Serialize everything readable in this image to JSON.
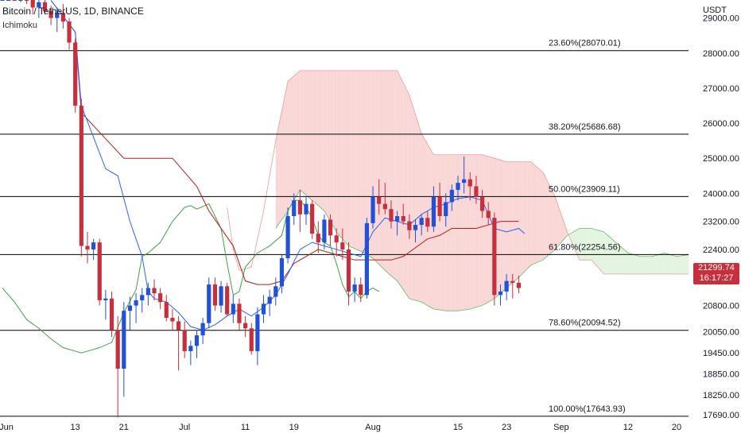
{
  "header": {
    "title": "Bitcoin / TetherUS, 1D, BINANCE",
    "indicator": "Ichimoku"
  },
  "price_badge": {
    "price": "21299.74",
    "countdown": "16:17:27"
  },
  "colors": {
    "up": "#2151d6",
    "down": "#c62f3b",
    "cloud_bear": "#f9d7d7",
    "cloud_bull": "#e3f4e0",
    "tenkan": "#2962ff",
    "kijun": "#b71c1c",
    "chikou": "#43a047",
    "span_a": "#66bb6a",
    "span_b": "#ef9a9a",
    "fib_line": "#000000"
  },
  "chart_data": {
    "type": "candlestick",
    "currency": "USDT",
    "ylim": [
      17550,
      29400
    ],
    "y_ticks": [
      29000,
      28000,
      27000,
      26000,
      25000,
      24000,
      23200,
      22400,
      21600,
      20800,
      20050,
      19450,
      18850,
      18250,
      17690
    ],
    "y_tick_labels": [
      "29000.00",
      "28000.00",
      "27000.00",
      "26000.00",
      "25000.00",
      "24000.00",
      "23200.00",
      "22400.00",
      "21600.00",
      "20800.00",
      "20050.00",
      "19450.00",
      "18850.00",
      "18250.00",
      "17690.00"
    ],
    "x_ticks": [
      {
        "label": "Jun",
        "i": 0
      },
      {
        "label": "13",
        "i": 12
      },
      {
        "label": "21",
        "i": 20
      },
      {
        "label": "Jul",
        "i": 30
      },
      {
        "label": "11",
        "i": 40
      },
      {
        "label": "19",
        "i": 48
      },
      {
        "label": "Aug",
        "i": 61
      },
      {
        "label": "15",
        "i": 75
      },
      {
        "label": "23",
        "i": 83
      },
      {
        "label": "Sep",
        "i": 92
      },
      {
        "label": "12",
        "i": 103
      },
      {
        "label": "20",
        "i": 111
      }
    ],
    "fib_levels": [
      {
        "label": "23.60%(28070.01)",
        "value": 28070.01
      },
      {
        "label": "38.20%(25686.68)",
        "value": 25686.68
      },
      {
        "label": "50.00%(23909.11)",
        "value": 23909.11
      },
      {
        "label": "61.80%(22254.56)",
        "value": 22254.56
      },
      {
        "label": "78.60%(20094.52)",
        "value": 20094.52
      },
      {
        "label": "100.00%(17643.93)",
        "value": 17643.93
      }
    ],
    "candles": [
      [
        29700,
        29900,
        29500,
        29780
      ],
      [
        29780,
        30050,
        29600,
        29880
      ],
      [
        29880,
        30100,
        29600,
        29700
      ],
      [
        29700,
        29950,
        29450,
        29850
      ],
      [
        29850,
        30000,
        29400,
        29550
      ],
      [
        29550,
        29750,
        29100,
        29300
      ],
      [
        29300,
        29600,
        29000,
        29450
      ],
      [
        29450,
        29700,
        29100,
        29200
      ],
      [
        29200,
        29350,
        28800,
        29000
      ],
      [
        29000,
        29300,
        28600,
        29150
      ],
      [
        29150,
        29400,
        28700,
        28900
      ],
      [
        28900,
        29000,
        28100,
        28300
      ],
      [
        28300,
        28400,
        26300,
        26500
      ],
      [
        26500,
        26700,
        22200,
        22500
      ],
      [
        22500,
        22900,
        22000,
        22400
      ],
      [
        22400,
        22700,
        22100,
        22600
      ],
      [
        22600,
        22700,
        20800,
        20950
      ],
      [
        20950,
        21250,
        20400,
        21000
      ],
      [
        21000,
        21200,
        19900,
        20100
      ],
      [
        20100,
        20500,
        17610,
        19000
      ],
      [
        19000,
        20900,
        18200,
        20650
      ],
      [
        20650,
        21050,
        20100,
        20800
      ],
      [
        20800,
        21150,
        20300,
        20950
      ],
      [
        20950,
        21300,
        20600,
        21100
      ],
      [
        21100,
        21450,
        20800,
        21300
      ],
      [
        21300,
        21550,
        20950,
        21150
      ],
      [
        21150,
        21300,
        20700,
        20900
      ],
      [
        20900,
        21100,
        20350,
        20450
      ],
      [
        20450,
        20700,
        20100,
        20350
      ],
      [
        20350,
        20500,
        18950,
        20100
      ],
      [
        20100,
        20350,
        19300,
        19500
      ],
      [
        19500,
        19800,
        19100,
        19650
      ],
      [
        19650,
        20100,
        19300,
        19950
      ],
      [
        19950,
        20450,
        19700,
        20300
      ],
      [
        20300,
        21600,
        20150,
        21400
      ],
      [
        21400,
        21600,
        20650,
        20800
      ],
      [
        20800,
        21500,
        20600,
        21350
      ],
      [
        21350,
        21450,
        20500,
        20550
      ],
      [
        20550,
        21100,
        20300,
        20850
      ],
      [
        20850,
        21000,
        20100,
        20300
      ],
      [
        20300,
        20500,
        19900,
        20150
      ],
      [
        20150,
        20300,
        19400,
        19500
      ],
      [
        19500,
        20750,
        19100,
        20550
      ],
      [
        20550,
        21100,
        20300,
        20850
      ],
      [
        20850,
        21250,
        20500,
        21050
      ],
      [
        21050,
        21600,
        20800,
        21350
      ],
      [
        21350,
        22250,
        21150,
        22150
      ],
      [
        22150,
        23600,
        22000,
        23350
      ],
      [
        23350,
        24000,
        23100,
        23800
      ],
      [
        23800,
        24100,
        22900,
        23400
      ],
      [
        23400,
        23900,
        23100,
        23700
      ],
      [
        23700,
        23800,
        22700,
        22850
      ],
      [
        22850,
        23200,
        22300,
        22600
      ],
      [
        22600,
        23400,
        22400,
        23250
      ],
      [
        23250,
        23400,
        22500,
        22800
      ],
      [
        22800,
        23000,
        22200,
        22600
      ],
      [
        22600,
        23000,
        22100,
        22400
      ],
      [
        22400,
        22600,
        20800,
        21200
      ],
      [
        21200,
        21600,
        20900,
        21400
      ],
      [
        21400,
        21600,
        20900,
        21100
      ],
      [
        21100,
        23300,
        21000,
        23150
      ],
      [
        23150,
        24200,
        23000,
        23900
      ],
      [
        23900,
        24400,
        23400,
        23700
      ],
      [
        23700,
        24300,
        23400,
        23550
      ],
      [
        23550,
        23800,
        23000,
        23200
      ],
      [
        23200,
        23500,
        22800,
        23350
      ],
      [
        23350,
        23700,
        23100,
        23200
      ],
      [
        23200,
        23400,
        22700,
        22950
      ],
      [
        22950,
        23250,
        22600,
        23100
      ],
      [
        23100,
        23400,
        22800,
        23300
      ],
      [
        23300,
        23500,
        22900,
        23050
      ],
      [
        23050,
        24200,
        22900,
        23900
      ],
      [
        23900,
        24300,
        23200,
        23350
      ],
      [
        23350,
        24000,
        23050,
        23750
      ],
      [
        23750,
        24250,
        23500,
        24100
      ],
      [
        24100,
        24500,
        23800,
        24300
      ],
      [
        24300,
        25050,
        24000,
        24400
      ],
      [
        24400,
        24600,
        23800,
        24200
      ],
      [
        24200,
        24500,
        23700,
        23900
      ],
      [
        23900,
        24100,
        23300,
        23500
      ],
      [
        23500,
        23750,
        23100,
        23300
      ],
      [
        23300,
        23450,
        20800,
        21100
      ],
      [
        21100,
        21400,
        20800,
        21200
      ],
      [
        21200,
        21700,
        20950,
        21500
      ],
      [
        21500,
        21700,
        21000,
        21450
      ],
      [
        21450,
        21650,
        21150,
        21300
      ]
    ],
    "ichimoku": {
      "tenkan": [
        [
          8,
          29500
        ],
        [
          12,
          28600
        ],
        [
          13,
          26500
        ],
        [
          15,
          25600
        ],
        [
          17,
          24700
        ],
        [
          19,
          24500
        ],
        [
          21,
          23200
        ],
        [
          23,
          22200
        ],
        [
          24,
          21200
        ],
        [
          25,
          21000
        ],
        [
          27,
          20900
        ],
        [
          29,
          20600
        ],
        [
          31,
          20200
        ],
        [
          33,
          20100
        ],
        [
          35,
          20250
        ],
        [
          37,
          20500
        ],
        [
          39,
          20700
        ],
        [
          41,
          20500
        ],
        [
          43,
          20750
        ],
        [
          45,
          21100
        ],
        [
          47,
          21700
        ],
        [
          49,
          22400
        ],
        [
          51,
          22600
        ],
        [
          53,
          22500
        ],
        [
          55,
          22400
        ],
        [
          57,
          22300
        ],
        [
          59,
          22200
        ],
        [
          61,
          22900
        ],
        [
          63,
          23300
        ],
        [
          65,
          23200
        ],
        [
          67,
          23100
        ],
        [
          69,
          23400
        ],
        [
          71,
          23600
        ],
        [
          73,
          23700
        ],
        [
          75,
          23850
        ],
        [
          77,
          23900
        ],
        [
          79,
          23800
        ],
        [
          81,
          23000
        ],
        [
          83,
          22900
        ],
        [
          85,
          23000
        ],
        [
          86,
          22850
        ]
      ],
      "kijun": [
        [
          8,
          29500
        ],
        [
          12,
          28600
        ],
        [
          13,
          26300
        ],
        [
          20,
          25000
        ],
        [
          24,
          25000
        ],
        [
          28,
          25000
        ],
        [
          30,
          24600
        ],
        [
          32,
          24200
        ],
        [
          34,
          23500
        ],
        [
          36,
          23000
        ],
        [
          38,
          22500
        ],
        [
          40,
          21500
        ],
        [
          42,
          21400
        ],
        [
          44,
          21400
        ],
        [
          46,
          21500
        ],
        [
          48,
          22000
        ],
        [
          50,
          22200
        ],
        [
          52,
          22400
        ],
        [
          54,
          22300
        ],
        [
          56,
          22200
        ],
        [
          58,
          22100
        ],
        [
          60,
          22100
        ],
        [
          62,
          22100
        ],
        [
          64,
          22100
        ],
        [
          66,
          22200
        ],
        [
          68,
          22450
        ],
        [
          70,
          22700
        ],
        [
          72,
          22800
        ],
        [
          74,
          23000
        ],
        [
          76,
          23000
        ],
        [
          78,
          23000
        ],
        [
          80,
          23100
        ],
        [
          82,
          23200
        ],
        [
          85,
          23200
        ]
      ],
      "chikou": [
        [
          0,
          21300
        ],
        [
          2,
          20900
        ],
        [
          4,
          20400
        ],
        [
          6,
          20150
        ],
        [
          8,
          19850
        ],
        [
          10,
          19600
        ],
        [
          12,
          19500
        ],
        [
          13,
          19450
        ],
        [
          14,
          19500
        ],
        [
          16,
          19600
        ],
        [
          18,
          19750
        ],
        [
          20,
          20600
        ],
        [
          22,
          21250
        ],
        [
          23,
          22200
        ],
        [
          24,
          22300
        ],
        [
          26,
          22600
        ],
        [
          28,
          23200
        ],
        [
          29,
          23400
        ],
        [
          30,
          23600
        ],
        [
          31,
          23650
        ],
        [
          32,
          23550
        ],
        [
          34,
          23700
        ],
        [
          36,
          23000
        ],
        [
          37,
          22000
        ],
        [
          38,
          21100
        ],
        [
          39,
          21200
        ],
        [
          40,
          21900
        ],
        [
          42,
          22300
        ],
        [
          44,
          22500
        ],
        [
          46,
          22800
        ],
        [
          47,
          23500
        ],
        [
          48,
          23800
        ],
        [
          49,
          23800
        ],
        [
          50,
          23600
        ],
        [
          51,
          23300
        ],
        [
          52,
          22800
        ],
        [
          53,
          22600
        ],
        [
          54,
          22500
        ],
        [
          55,
          22000
        ],
        [
          56,
          21400
        ],
        [
          57,
          21050
        ],
        [
          58,
          21200
        ],
        [
          59,
          21000
        ],
        [
          60,
          21200
        ],
        [
          61,
          21300
        ],
        [
          62,
          21200
        ]
      ],
      "span_a": [
        [
          45,
          23000
        ],
        [
          47,
          23500
        ],
        [
          49,
          24100
        ],
        [
          51,
          23800
        ],
        [
          53,
          23500
        ],
        [
          55,
          22900
        ],
        [
          57,
          22500
        ],
        [
          59,
          22350
        ],
        [
          61,
          22150
        ],
        [
          63,
          21800
        ],
        [
          65,
          21500
        ],
        [
          67,
          21000
        ],
        [
          69,
          20900
        ],
        [
          71,
          20700
        ],
        [
          73,
          20650
        ],
        [
          75,
          20650
        ],
        [
          77,
          20700
        ],
        [
          79,
          20800
        ],
        [
          81,
          21000
        ],
        [
          83,
          21300
        ],
        [
          85,
          21600
        ],
        [
          87,
          21950
        ],
        [
          89,
          22100
        ],
        [
          91,
          22400
        ],
        [
          93,
          22800
        ],
        [
          95,
          23000
        ],
        [
          97,
          23000
        ],
        [
          99,
          22900
        ],
        [
          101,
          22600
        ],
        [
          103,
          22300
        ],
        [
          105,
          22200
        ],
        [
          107,
          22200
        ],
        [
          109,
          22300
        ],
        [
          111,
          22200
        ],
        [
          113,
          22250
        ]
      ],
      "span_b": [
        [
          37,
          23600
        ],
        [
          38,
          22400
        ],
        [
          39,
          21800
        ],
        [
          41,
          21900
        ],
        [
          43,
          23500
        ],
        [
          45,
          25500
        ],
        [
          47,
          27200
        ],
        [
          49,
          27500
        ],
        [
          51,
          27500
        ],
        [
          53,
          27500
        ],
        [
          55,
          27500
        ],
        [
          57,
          27500
        ],
        [
          59,
          27500
        ],
        [
          61,
          27500
        ],
        [
          63,
          27500
        ],
        [
          65,
          27500
        ],
        [
          67,
          26800
        ],
        [
          69,
          25700
        ],
        [
          71,
          25100
        ],
        [
          73,
          25100
        ],
        [
          75,
          25100
        ],
        [
          77,
          25100
        ],
        [
          79,
          25100
        ],
        [
          81,
          25000
        ],
        [
          83,
          24900
        ],
        [
          85,
          24900
        ],
        [
          87,
          24900
        ],
        [
          89,
          24600
        ],
        [
          91,
          23900
        ],
        [
          93,
          22900
        ],
        [
          95,
          22100
        ],
        [
          97,
          22100
        ],
        [
          99,
          21700
        ],
        [
          101,
          21700
        ],
        [
          103,
          21700
        ],
        [
          105,
          21700
        ],
        [
          107,
          21700
        ],
        [
          109,
          21700
        ],
        [
          111,
          21700
        ],
        [
          113,
          21700
        ]
      ]
    }
  }
}
